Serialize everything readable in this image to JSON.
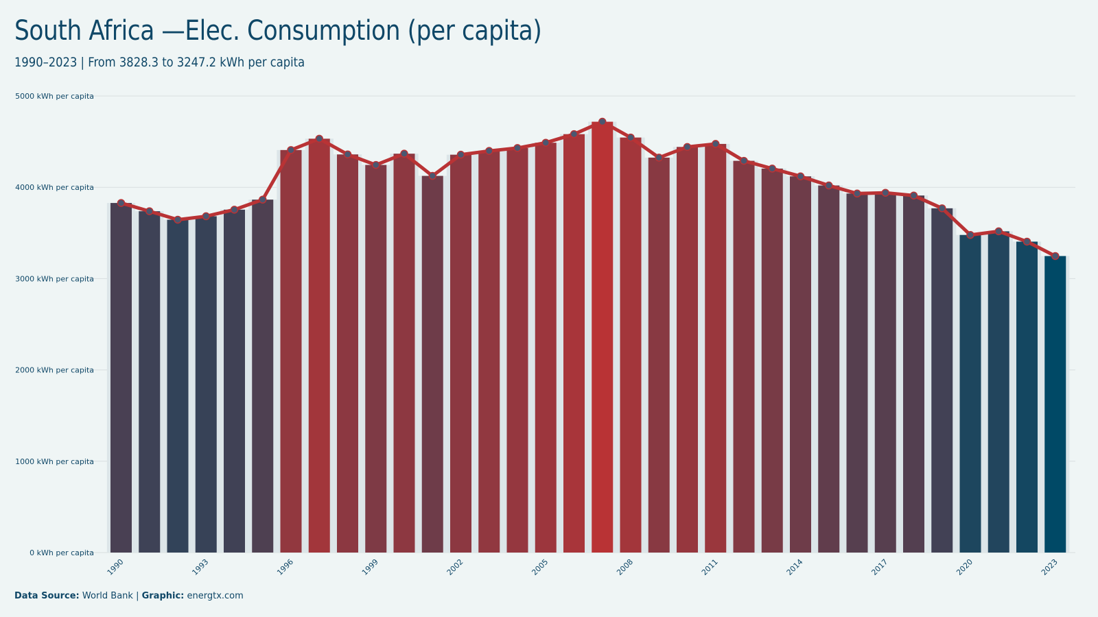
{
  "chart_data": {
    "type": "bar",
    "title": "South Africa —Elec. Consumption (per capita)",
    "subtitle": "1990–2023 | From 3828.3 to 3247.2 kWh per capita",
    "categories": [
      "1990",
      "1991",
      "1992",
      "1993",
      "1994",
      "1995",
      "1996",
      "1997",
      "1998",
      "1999",
      "2000",
      "2001",
      "2002",
      "2003",
      "2004",
      "2005",
      "2006",
      "2007",
      "2008",
      "2009",
      "2010",
      "2011",
      "2012",
      "2013",
      "2014",
      "2015",
      "2016",
      "2017",
      "2018",
      "2019",
      "2020",
      "2021",
      "2022",
      "2023"
    ],
    "x_tick_labels": [
      "1990",
      "1993",
      "1996",
      "1999",
      "2002",
      "2005",
      "2008",
      "2011",
      "2014",
      "2017",
      "2020",
      "2023"
    ],
    "values": [
      3828.3,
      3738,
      3645,
      3683,
      3755,
      3865,
      4408,
      4532,
      4360,
      4245,
      4368,
      4125,
      4357,
      4398,
      4430,
      4488,
      4582,
      4718,
      4545,
      4325,
      4442,
      4475,
      4290,
      4205,
      4120,
      4020,
      3932,
      3940,
      3910,
      3770,
      3478,
      3518,
      3405,
      3247.2
    ],
    "series": [
      {
        "name": "",
        "type": "bar",
        "values_ref": "values"
      },
      {
        "name": "",
        "type": "line",
        "values_ref": "values"
      }
    ],
    "ylim": [
      0,
      5000
    ],
    "y_ticks": [
      0,
      1000,
      2000,
      3000,
      4000,
      5000
    ],
    "y_tick_suffix": " kWh per capita",
    "xlabel": "",
    "ylabel": "",
    "grid": true,
    "legend": "none",
    "colors": {
      "bar_low": "#004966",
      "bar_high": "#b93335",
      "line": "#b93335",
      "marker_fill": "#4b5770",
      "marker_stroke": "#b93335",
      "grid": "#d8dee0",
      "plot_band": "#dce5e8",
      "text": "#0f4767",
      "background": "#eff5f5"
    }
  },
  "footer": {
    "source_label": "Data Source:",
    "source_value": " World Bank | ",
    "graphic_label": "Graphic:",
    "graphic_value": " energtx.com"
  }
}
